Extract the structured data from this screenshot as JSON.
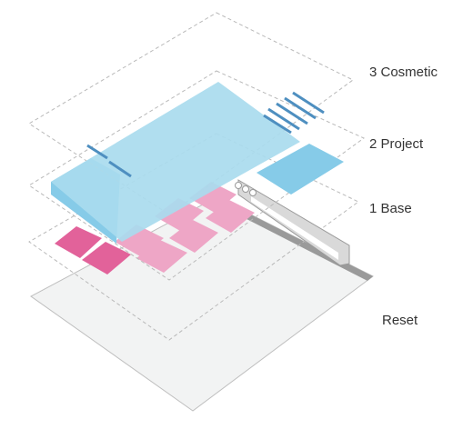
{
  "layers": [
    {
      "id": "cosmetic",
      "label": "3 Cosmetic"
    },
    {
      "id": "project",
      "label": "2 Project"
    },
    {
      "id": "base",
      "label": "1 Base"
    },
    {
      "id": "reset",
      "label": "Reset"
    }
  ],
  "colors": {
    "reset_fill": "#f2f3f3",
    "reset_edge": "#9a9a9a",
    "dashed_outline": "#b9b9b9",
    "base_pink_dark": "#e2629a",
    "base_pink_light": "#eea6c6",
    "project_blue_light": "#a9dbee",
    "project_blue_mid": "#86cbe8",
    "accent_stripe": "#4e8fc0",
    "scrollbar_gray": "#c8c8c8",
    "label_text": "#333333"
  },
  "icons": [
    "stripe-lines-icon",
    "scrollbar-shape",
    "window-button-icon"
  ]
}
